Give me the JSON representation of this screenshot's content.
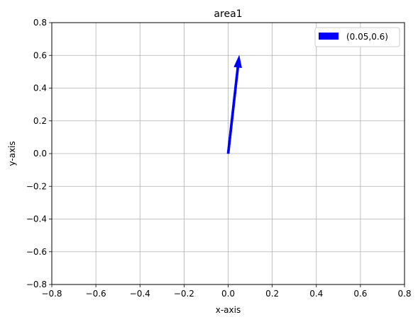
{
  "chart_data": {
    "type": "quiver",
    "title": "area1",
    "xlabel": "x-axis",
    "ylabel": "y-axis",
    "xlim": [
      -0.8,
      0.8
    ],
    "ylim": [
      -0.8,
      0.8
    ],
    "xticks": [
      -0.8,
      -0.6,
      -0.4,
      -0.2,
      0.0,
      0.2,
      0.4,
      0.6,
      0.8
    ],
    "yticks": [
      -0.8,
      -0.6,
      -0.4,
      -0.2,
      0.0,
      0.2,
      0.4,
      0.6,
      0.8
    ],
    "xtick_labels": [
      "−0.8",
      "−0.6",
      "−0.4",
      "−0.2",
      "0.0",
      "0.2",
      "0.4",
      "0.6",
      "0.8"
    ],
    "ytick_labels": [
      "−0.8",
      "−0.6",
      "−0.4",
      "−0.2",
      "0.0",
      "0.2",
      "0.4",
      "0.6",
      "0.8"
    ],
    "grid": true,
    "legend_position": "top-right",
    "vectors": [
      {
        "name": "(0.05,0.6)",
        "origin": [
          0,
          0
        ],
        "vector": [
          0.05,
          0.6
        ],
        "color": "#0000ff"
      }
    ]
  }
}
